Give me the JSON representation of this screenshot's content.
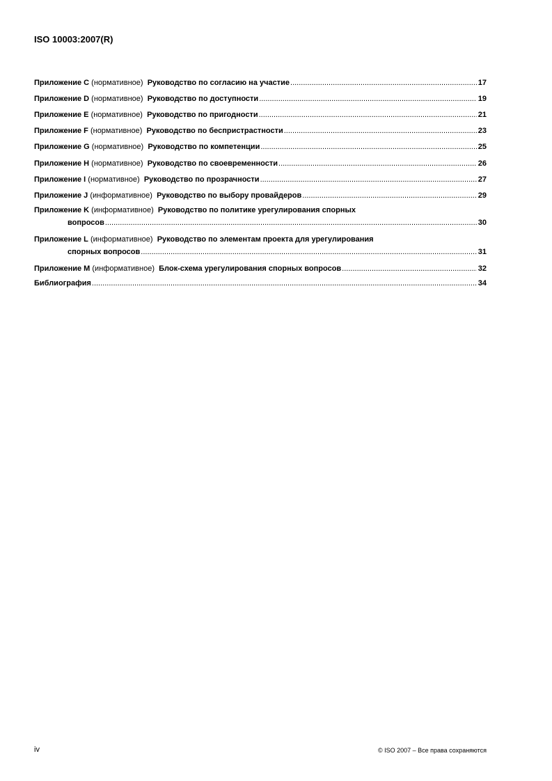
{
  "header": {
    "title": "ISO 10003:2007(R)"
  },
  "toc": [
    {
      "label": "Приложение C",
      "type": "(нормативное)",
      "title": "Руководство по согласию на участие",
      "page": "17"
    },
    {
      "label": "Приложение D",
      "type": "(нормативное)",
      "title": "Руководство по доступности",
      "page": "19"
    },
    {
      "label": "Приложение E",
      "type": "(нормативное)",
      "title": "Руководство по пригодности",
      "page": "21"
    },
    {
      "label": "Приложение F",
      "type": "(нормативное)",
      "title": "Руководство по беспристрастности",
      "page": "23"
    },
    {
      "label": "Приложение G",
      "type": "(нормативное)",
      "title": "Руководство по компетенции",
      "page": "25"
    },
    {
      "label": "Приложение H",
      "type": "(нормативное)",
      "title": "Руководство по своевременности",
      "page": "26"
    },
    {
      "label": "Приложение I",
      "type": "(нормативное)",
      "title": "Руководство по прозрачности",
      "page": "27"
    },
    {
      "label": "Приложение J",
      "type": "(информативное)",
      "title": "Руководство по выбору провайдеров",
      "page": "29"
    },
    {
      "label": "Приложение K",
      "type": "(информативное)",
      "title": "Руководство по политике урегулирования спорных",
      "title_cont": "вопросов",
      "page": "30"
    },
    {
      "label": "Приложение L",
      "type": "(информативное)",
      "title": "Руководство по элементам проекта для урегулирования",
      "title_cont": "спорных вопросов",
      "page": "31"
    },
    {
      "label": "Приложение M",
      "type": "(информативное)",
      "title": "Блок-схема урегулирования спорных вопросов",
      "page": "32"
    },
    {
      "label": "Библиография",
      "page": "34"
    }
  ],
  "footer": {
    "page_number": "iv",
    "copyright": "© ISO 2007 – Все права сохраняются"
  }
}
